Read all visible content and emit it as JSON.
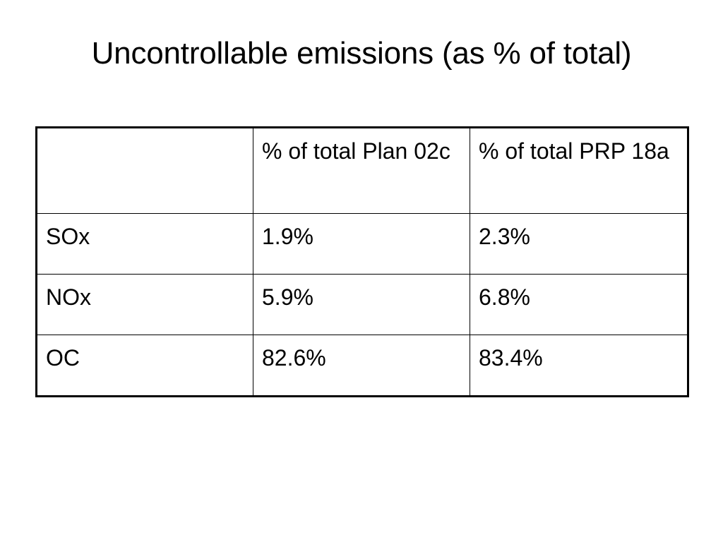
{
  "slide": {
    "title": "Uncontrollable emissions (as % of total)"
  },
  "table": {
    "headers": [
      "",
      "% of total Plan 02c",
      "% of total PRP 18a"
    ],
    "rows": [
      {
        "pollutant": "SOx",
        "plan_02c": "1.9%",
        "prp_18a": "2.3%"
      },
      {
        "pollutant": "NOx",
        "plan_02c": "5.9%",
        "prp_18a": "6.8%"
      },
      {
        "pollutant": "OC",
        "plan_02c": "82.6%",
        "prp_18a": "83.4%"
      }
    ]
  }
}
